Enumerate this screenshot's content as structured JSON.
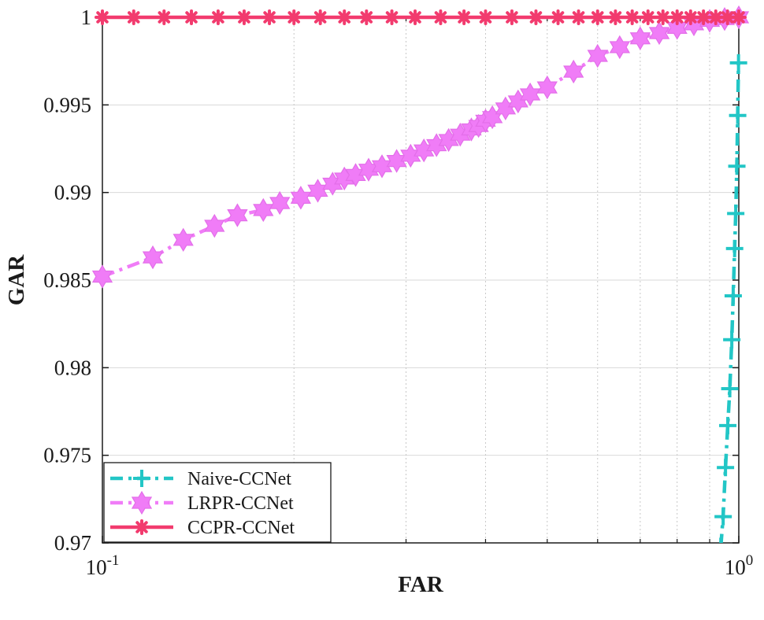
{
  "chart_data": {
    "type": "line",
    "title": "",
    "xlabel": "FAR",
    "ylabel": "GAR",
    "xscale": "log",
    "xlim": [
      0.1,
      1
    ],
    "ylim": [
      0.97,
      1
    ],
    "grid": true,
    "legend_position": "bottom-left",
    "x_ticks": [
      {
        "value": 0.1,
        "base": "10",
        "exp": "-1"
      },
      {
        "value": 1,
        "base": "10",
        "exp": "0"
      }
    ],
    "y_ticks": [
      {
        "value": 0.97,
        "label": "0.97"
      },
      {
        "value": 0.975,
        "label": "0.975"
      },
      {
        "value": 0.98,
        "label": "0.98"
      },
      {
        "value": 0.985,
        "label": "0.985"
      },
      {
        "value": 0.99,
        "label": "0.99"
      },
      {
        "value": 0.995,
        "label": "0.995"
      },
      {
        "value": 1,
        "label": "1"
      }
    ],
    "series": [
      {
        "name": "Naive-CCNet",
        "color": "#22c6c6",
        "dash": "dashdot",
        "marker": "plus",
        "x": [
          0.937,
          0.945,
          0.953,
          0.961,
          0.968,
          0.975,
          0.98,
          0.985,
          0.989,
          0.993,
          0.996,
          0.999
        ],
        "y": [
          0.9698,
          0.9715,
          0.9743,
          0.9767,
          0.9788,
          0.9816,
          0.9841,
          0.9868,
          0.9888,
          0.9915,
          0.9944,
          0.9974
        ]
      },
      {
        "name": "LRPR-CCNet",
        "color": "#f07cf7",
        "dash": "dashdot",
        "marker": "hexagram",
        "x": [
          0.1,
          0.12,
          0.134,
          0.15,
          0.163,
          0.179,
          0.19,
          0.205,
          0.218,
          0.23,
          0.24,
          0.25,
          0.262,
          0.275,
          0.29,
          0.305,
          0.32,
          0.335,
          0.35,
          0.365,
          0.38,
          0.39,
          0.4,
          0.41,
          0.43,
          0.45,
          0.47,
          0.5,
          0.55,
          0.6,
          0.65,
          0.7,
          0.75,
          0.8,
          0.85,
          0.9,
          0.95,
          1.0
        ],
        "y": [
          0.9852,
          0.9863,
          0.9873,
          0.9881,
          0.9887,
          0.989,
          0.9894,
          0.9897,
          0.9901,
          0.9905,
          0.9908,
          0.991,
          0.9913,
          0.9915,
          0.9918,
          0.9921,
          0.9924,
          0.9927,
          0.993,
          0.9933,
          0.9936,
          0.9938,
          0.9941,
          0.9943,
          0.9948,
          0.9952,
          0.9956,
          0.996,
          0.9969,
          0.9978,
          0.9983,
          0.9988,
          0.9991,
          0.9994,
          0.9996,
          0.9998,
          0.9999,
          1.0
        ]
      },
      {
        "name": "CCPR-CCNet",
        "color": "#f23b6e",
        "dash": "solid",
        "marker": "asterisk",
        "x": [
          0.1,
          0.112,
          0.125,
          0.138,
          0.152,
          0.167,
          0.183,
          0.2,
          0.22,
          0.24,
          0.26,
          0.285,
          0.31,
          0.34,
          0.37,
          0.4,
          0.44,
          0.48,
          0.52,
          0.56,
          0.6,
          0.64,
          0.68,
          0.72,
          0.76,
          0.8,
          0.84,
          0.88,
          0.92,
          0.96,
          1.0
        ],
        "y": [
          1,
          1,
          1,
          1,
          1,
          1,
          1,
          1,
          1,
          1,
          1,
          1,
          1,
          1,
          1,
          1,
          1,
          1,
          1,
          1,
          1,
          1,
          1,
          1,
          1,
          1,
          1,
          1,
          1,
          1,
          1
        ]
      }
    ]
  }
}
